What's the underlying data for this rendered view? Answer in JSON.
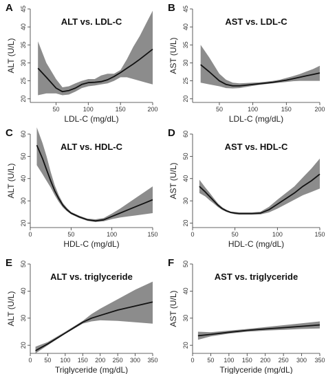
{
  "chart_data": [
    {
      "type": "line",
      "panel": "A",
      "title": "ALT vs. LDL-C",
      "xlabel": "LDL-C (mg/dL)",
      "ylabel": "ALT (U/L)",
      "xlim": [
        10,
        200
      ],
      "ylim": [
        19,
        45
      ],
      "xticks": [
        50,
        100,
        150,
        200
      ],
      "yticks": [
        20,
        25,
        30,
        35,
        40,
        45
      ],
      "series": [
        {
          "x": [
            22,
            35,
            50,
            60,
            70,
            80,
            90,
            100,
            110,
            120,
            130,
            140,
            150,
            160,
            170,
            180,
            190,
            200
          ],
          "y": [
            28.5,
            26.0,
            23.0,
            22.0,
            22.3,
            23.0,
            24.0,
            24.5,
            24.6,
            24.8,
            25.3,
            26.2,
            27.3,
            28.5,
            29.7,
            31.0,
            32.4,
            33.8
          ],
          "lower": [
            21.0,
            21.5,
            21.5,
            21.0,
            21.2,
            22.0,
            23.0,
            23.5,
            23.7,
            24.0,
            24.3,
            25.0,
            26.0,
            26.0,
            25.5,
            25.0,
            24.5,
            24.0
          ],
          "upper": [
            36.0,
            30.0,
            25.5,
            23.2,
            23.5,
            24.3,
            25.0,
            25.5,
            25.5,
            26.5,
            27.0,
            27.0,
            28.0,
            31.0,
            34.5,
            37.5,
            41.0,
            44.5
          ]
        }
      ]
    },
    {
      "type": "line",
      "panel": "B",
      "title": "AST vs. LDL-C",
      "xlabel": "LDL-C (mg/dL)",
      "ylabel": "AST (U/L)",
      "xlim": [
        10,
        200
      ],
      "ylim": [
        19,
        45
      ],
      "xticks": [
        50,
        100,
        150,
        200
      ],
      "yticks": [
        20,
        25,
        30,
        35,
        40,
        45
      ],
      "series": [
        {
          "x": [
            22,
            35,
            50,
            60,
            70,
            80,
            90,
            100,
            110,
            120,
            130,
            140,
            150,
            160,
            170,
            180,
            190,
            200
          ],
          "y": [
            29.5,
            27.5,
            25.0,
            24.0,
            23.6,
            23.6,
            23.8,
            24.0,
            24.2,
            24.4,
            24.6,
            24.9,
            25.2,
            25.6,
            26.0,
            26.4,
            26.8,
            27.2
          ],
          "lower": [
            24.5,
            24.0,
            23.5,
            23.0,
            22.9,
            23.0,
            23.3,
            23.6,
            23.9,
            24.1,
            24.3,
            24.5,
            24.7,
            24.9,
            25.0,
            25.0,
            25.0,
            25.0
          ],
          "upper": [
            35.0,
            31.5,
            27.0,
            25.3,
            24.5,
            24.3,
            24.4,
            24.5,
            24.6,
            24.8,
            25.0,
            25.3,
            25.8,
            26.3,
            26.9,
            27.6,
            28.3,
            29.2
          ]
        }
      ]
    },
    {
      "type": "line",
      "panel": "C",
      "title": "ALT vs. HDL-C",
      "xlabel": "HDL-C (mg/dL)",
      "ylabel": "ALT (U/L)",
      "xlim": [
        0,
        150
      ],
      "ylim": [
        18,
        60
      ],
      "xticks": [
        0,
        50,
        100,
        150
      ],
      "yticks": [
        20,
        30,
        40,
        50,
        60
      ],
      "series": [
        {
          "x": [
            8,
            15,
            20,
            25,
            30,
            35,
            40,
            45,
            50,
            60,
            70,
            80,
            90,
            100,
            110,
            120,
            130,
            140,
            150
          ],
          "y": [
            55.0,
            49.0,
            44.0,
            39.0,
            34.5,
            31.0,
            28.0,
            26.0,
            24.5,
            22.8,
            21.5,
            21.0,
            21.5,
            23.0,
            24.5,
            26.0,
            27.5,
            29.0,
            30.5
          ],
          "lower": [
            46.0,
            42.0,
            39.0,
            36.0,
            32.5,
            29.5,
            27.0,
            25.3,
            24.0,
            22.3,
            21.0,
            20.5,
            20.8,
            21.8,
            22.5,
            23.0,
            23.5,
            24.0,
            24.5
          ],
          "upper": [
            63.0,
            56.0,
            50.0,
            43.0,
            37.0,
            32.5,
            29.0,
            26.8,
            25.0,
            23.3,
            22.0,
            21.7,
            22.3,
            24.3,
            26.5,
            29.0,
            31.5,
            34.0,
            36.5
          ]
        }
      ]
    },
    {
      "type": "line",
      "panel": "D",
      "title": "AST vs. HDL-C",
      "xlabel": "HDL-C (mg/dL)",
      "ylabel": "AST (U/L)",
      "xlim": [
        0,
        150
      ],
      "ylim": [
        18,
        60
      ],
      "xticks": [
        0,
        50,
        100,
        150
      ],
      "yticks": [
        20,
        30,
        40,
        50,
        60
      ],
      "series": [
        {
          "x": [
            8,
            15,
            20,
            25,
            30,
            35,
            40,
            45,
            50,
            55,
            60,
            70,
            80,
            90,
            100,
            110,
            120,
            130,
            140,
            150
          ],
          "y": [
            36.5,
            34.0,
            32.0,
            30.0,
            28.0,
            26.5,
            25.5,
            24.8,
            24.5,
            24.3,
            24.3,
            24.3,
            24.5,
            26.0,
            28.5,
            31.0,
            33.5,
            36.5,
            39.0,
            42.0
          ],
          "lower": [
            33.5,
            32.0,
            30.3,
            28.8,
            27.2,
            25.9,
            25.0,
            24.4,
            24.0,
            23.8,
            23.8,
            23.8,
            23.9,
            24.8,
            26.5,
            28.5,
            30.5,
            32.5,
            34.0,
            35.5
          ],
          "upper": [
            39.5,
            36.0,
            33.7,
            31.2,
            28.8,
            27.1,
            26.0,
            25.2,
            25.0,
            24.8,
            24.8,
            24.8,
            25.1,
            27.3,
            30.5,
            33.5,
            36.5,
            40.5,
            44.5,
            49.0
          ]
        }
      ]
    },
    {
      "type": "line",
      "panel": "E",
      "title": "ALT vs. triglyceride",
      "xlabel": "Triglyceride (mg/dL)",
      "ylabel": "ALT (U/L)",
      "xlim": [
        0,
        350
      ],
      "ylim": [
        17,
        50
      ],
      "xticks": [
        0,
        50,
        100,
        150,
        200,
        250,
        300,
        350
      ],
      "yticks": [
        20,
        30,
        40,
        50
      ],
      "series": [
        {
          "x": [
            15,
            50,
            100,
            150,
            175,
            200,
            250,
            300,
            350
          ],
          "y": [
            18.0,
            20.5,
            24.5,
            28.5,
            30.0,
            31.0,
            33.0,
            34.5,
            36.0
          ],
          "lower": [
            17.0,
            20.0,
            24.2,
            28.0,
            28.8,
            29.2,
            29.0,
            28.5,
            28.0
          ],
          "upper": [
            19.5,
            21.2,
            25.0,
            29.0,
            31.5,
            33.5,
            37.0,
            40.5,
            43.5
          ]
        }
      ]
    },
    {
      "type": "line",
      "panel": "F",
      "title": "AST vs. triglyceride",
      "xlabel": "Triglyceride (mg/dL)",
      "ylabel": "AST (U/L)",
      "xlim": [
        0,
        350
      ],
      "ylim": [
        17,
        50
      ],
      "xticks": [
        0,
        50,
        100,
        150,
        200,
        250,
        300,
        350
      ],
      "yticks": [
        20,
        30,
        40,
        50
      ],
      "series": [
        {
          "x": [
            15,
            50,
            100,
            150,
            200,
            250,
            300,
            350
          ],
          "y": [
            23.5,
            24.0,
            24.8,
            25.5,
            26.0,
            26.5,
            27.0,
            27.5
          ],
          "lower": [
            22.0,
            23.3,
            24.3,
            25.0,
            25.4,
            25.7,
            26.0,
            26.2
          ],
          "upper": [
            25.0,
            24.8,
            25.4,
            26.0,
            26.7,
            27.4,
            28.1,
            28.8
          ]
        }
      ]
    }
  ]
}
